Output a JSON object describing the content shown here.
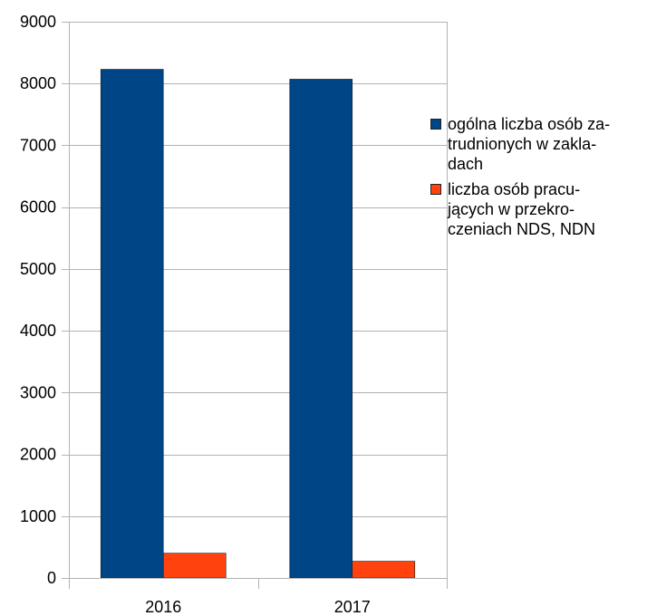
{
  "chart_data": {
    "type": "bar",
    "categories": [
      "2016",
      "2017"
    ],
    "series": [
      {
        "name": "ogólna liczba osób zatrudnionych w zakładach",
        "values": [
          8230,
          8070
        ],
        "color": "#004586"
      },
      {
        "name": "liczba osób pracujących w przekroczeniach NDS, NDN",
        "values": [
          400,
          270
        ],
        "color": "#ff420e"
      }
    ],
    "ylim": [
      0,
      9000
    ],
    "yticks": [
      0,
      1000,
      2000,
      3000,
      4000,
      5000,
      6000,
      7000,
      8000,
      9000
    ],
    "grid": true,
    "legend_position": "right",
    "legend_labels": [
      [
        "ogólna liczba osób za-",
        "trudnionych w zakla-",
        "dach"
      ],
      [
        "liczba osób pracu-",
        "jących w przekro-",
        "czeniach NDS, NDN"
      ]
    ]
  }
}
